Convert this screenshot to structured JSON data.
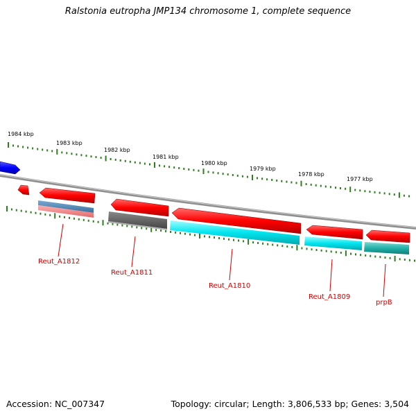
{
  "title": "Ralstonia eutropha JMP134 chromosome 1, complete sequence",
  "footer": {
    "accession": "Accession: NC_007347",
    "stats": "Topology: circular; Length: 3,806,533 bp; Genes: 3,504"
  },
  "colors": {
    "forward_gene": "#ff0000",
    "forward_gene_partial": "#0000ff",
    "backbone": "#8a8a8a",
    "tick": "#2e7d1f",
    "feature_steelblue": "#4a86b8",
    "feature_pink": "#f08a8a",
    "feature_gray": "#666666",
    "feature_cyan": "#00e5ee",
    "feature_teal": "#20b2aa",
    "label": "#cc0000"
  },
  "scale": {
    "ticks": [
      {
        "label": "1984 kbp"
      },
      {
        "label": "1983 kbp"
      },
      {
        "label": "1982 kbp"
      },
      {
        "label": "1981 kbp"
      },
      {
        "label": "1980 kbp"
      },
      {
        "label": "1979 kbp"
      },
      {
        "label": "1978 kbp"
      },
      {
        "label": "1977 kbp"
      }
    ]
  },
  "genes": [
    {
      "name": "Reut_A1812"
    },
    {
      "name": "Reut_A1811"
    },
    {
      "name": "Reut_A1810"
    },
    {
      "name": "Reut_A1809"
    },
    {
      "name": "prpB"
    }
  ]
}
